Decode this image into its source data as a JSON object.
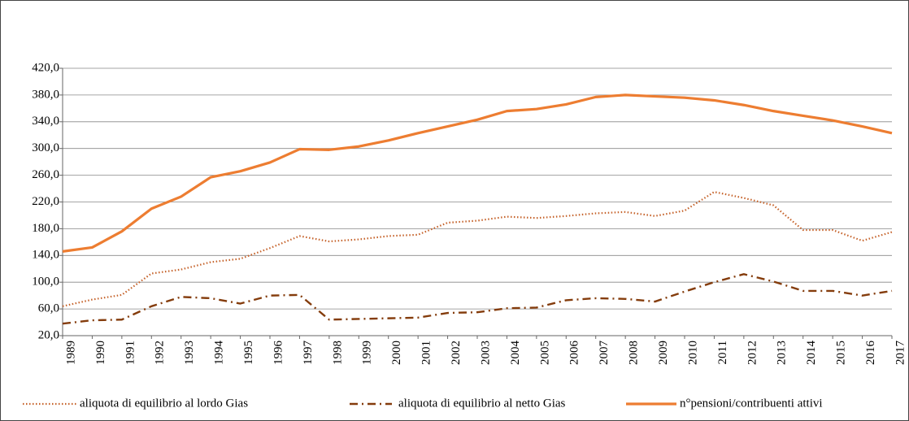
{
  "chart_data": {
    "type": "line",
    "categories": [
      "1989",
      "1990",
      "1991",
      "1992",
      "1993",
      "1994",
      "1995",
      "1996",
      "1997",
      "1998",
      "1999",
      "2000",
      "2001",
      "2002",
      "2003",
      "2004",
      "2005",
      "2006",
      "2007",
      "2008",
      "2009",
      "2010",
      "2011",
      "2012",
      "2013",
      "2014",
      "2015",
      "2016",
      "2017"
    ],
    "series": [
      {
        "name": "aliquota di equilibrio al lordo Gias",
        "color": "#c5622a",
        "style": "dotted",
        "values": [
          64,
          74,
          81,
          113,
          119,
          130,
          135,
          151,
          169,
          161,
          164,
          169,
          171,
          189,
          192,
          198,
          196,
          199,
          203,
          205,
          199,
          207,
          235,
          226,
          215,
          178,
          178,
          162,
          175
        ]
      },
      {
        "name": "aliquota di equilibrio al netto Gias",
        "color": "#843c0c",
        "style": "dashdot",
        "values": [
          38,
          43,
          44,
          64,
          78,
          76,
          68,
          80,
          81,
          44,
          45,
          46,
          47,
          54,
          55,
          61,
          62,
          73,
          76,
          75,
          71,
          86,
          100,
          112,
          101,
          87,
          87,
          80,
          87
        ]
      },
      {
        "name": "n°pensioni/contribuenti attivi",
        "color": "#ed7d31",
        "style": "solid",
        "values": [
          146,
          152,
          176,
          210,
          228,
          257,
          266,
          279,
          299,
          298,
          303,
          312,
          323,
          333,
          343,
          356,
          359,
          366,
          377,
          380,
          378,
          376,
          372,
          365,
          356,
          349,
          342,
          333,
          323
        ]
      }
    ],
    "ylim": [
      20,
      420
    ],
    "yticks": [
      {
        "value": 20,
        "label": "20,0"
      },
      {
        "value": 60,
        "label": "60,0"
      },
      {
        "value": 100,
        "label": "100,0"
      },
      {
        "value": 140,
        "label": "140,0"
      },
      {
        "value": 180,
        "label": "180,0"
      },
      {
        "value": 220,
        "label": "220,0"
      },
      {
        "value": 260,
        "label": "260,0"
      },
      {
        "value": 300,
        "label": "300,0"
      },
      {
        "value": 340,
        "label": "340,0"
      },
      {
        "value": 380,
        "label": "380,0"
      },
      {
        "value": 420,
        "label": "420,0"
      }
    ],
    "grid": true,
    "legend": "bottom"
  }
}
